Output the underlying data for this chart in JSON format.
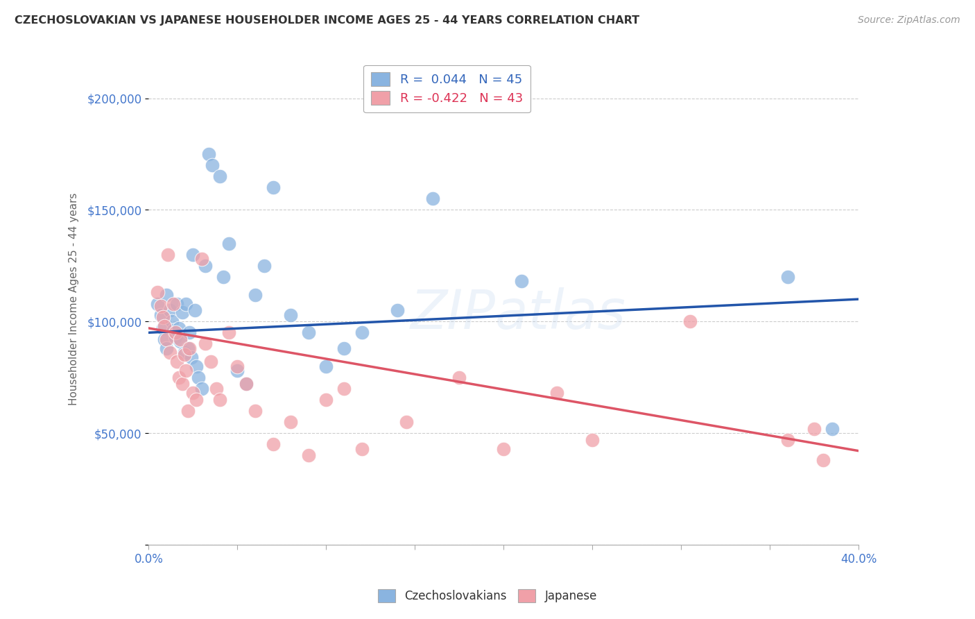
{
  "title": "CZECHOSLOVAKIAN VS JAPANESE HOUSEHOLDER INCOME AGES 25 - 44 YEARS CORRELATION CHART",
  "source": "Source: ZipAtlas.com",
  "ylabel": "Householder Income Ages 25 - 44 years",
  "xlim": [
    0.0,
    0.4
  ],
  "ylim": [
    0,
    220000
  ],
  "xticks": [
    0.0,
    0.05,
    0.1,
    0.15,
    0.2,
    0.25,
    0.3,
    0.35,
    0.4
  ],
  "yticks": [
    0,
    50000,
    100000,
    150000,
    200000
  ],
  "czech_R": 0.044,
  "czech_N": 45,
  "japan_R": -0.422,
  "japan_N": 43,
  "czech_color": "#8ab4e0",
  "japan_color": "#f0a0a8",
  "czech_line_color": "#2255aa",
  "japan_line_color": "#dd5566",
  "ytick_color": "#4477cc",
  "background_color": "#ffffff",
  "watermark": "ZIPatlas",
  "czech_x": [
    0.005,
    0.007,
    0.008,
    0.009,
    0.01,
    0.01,
    0.012,
    0.013,
    0.014,
    0.015,
    0.016,
    0.017,
    0.018,
    0.019,
    0.02,
    0.021,
    0.022,
    0.023,
    0.024,
    0.025,
    0.026,
    0.027,
    0.028,
    0.03,
    0.032,
    0.034,
    0.036,
    0.04,
    0.042,
    0.045,
    0.05,
    0.055,
    0.06,
    0.065,
    0.07,
    0.08,
    0.09,
    0.1,
    0.11,
    0.12,
    0.14,
    0.16,
    0.21,
    0.36,
    0.385
  ],
  "czech_y": [
    108000,
    103000,
    97000,
    92000,
    88000,
    112000,
    105000,
    100000,
    96000,
    93000,
    108000,
    97000,
    91000,
    104000,
    86000,
    108000,
    88000,
    95000,
    84000,
    130000,
    105000,
    80000,
    75000,
    70000,
    125000,
    175000,
    170000,
    165000,
    120000,
    135000,
    78000,
    72000,
    112000,
    125000,
    160000,
    103000,
    95000,
    80000,
    88000,
    95000,
    105000,
    155000,
    118000,
    120000,
    52000
  ],
  "japan_x": [
    0.005,
    0.007,
    0.008,
    0.009,
    0.01,
    0.011,
    0.012,
    0.014,
    0.015,
    0.016,
    0.017,
    0.018,
    0.019,
    0.02,
    0.021,
    0.022,
    0.023,
    0.025,
    0.027,
    0.03,
    0.032,
    0.035,
    0.038,
    0.04,
    0.045,
    0.05,
    0.055,
    0.06,
    0.07,
    0.08,
    0.09,
    0.1,
    0.11,
    0.12,
    0.145,
    0.175,
    0.2,
    0.23,
    0.25,
    0.305,
    0.36,
    0.375,
    0.38
  ],
  "japan_y": [
    113000,
    107000,
    102000,
    98000,
    92000,
    130000,
    86000,
    108000,
    95000,
    82000,
    75000,
    92000,
    72000,
    85000,
    78000,
    60000,
    88000,
    68000,
    65000,
    128000,
    90000,
    82000,
    70000,
    65000,
    95000,
    80000,
    72000,
    60000,
    45000,
    55000,
    40000,
    65000,
    70000,
    43000,
    55000,
    75000,
    43000,
    68000,
    47000,
    100000,
    47000,
    52000,
    38000
  ]
}
